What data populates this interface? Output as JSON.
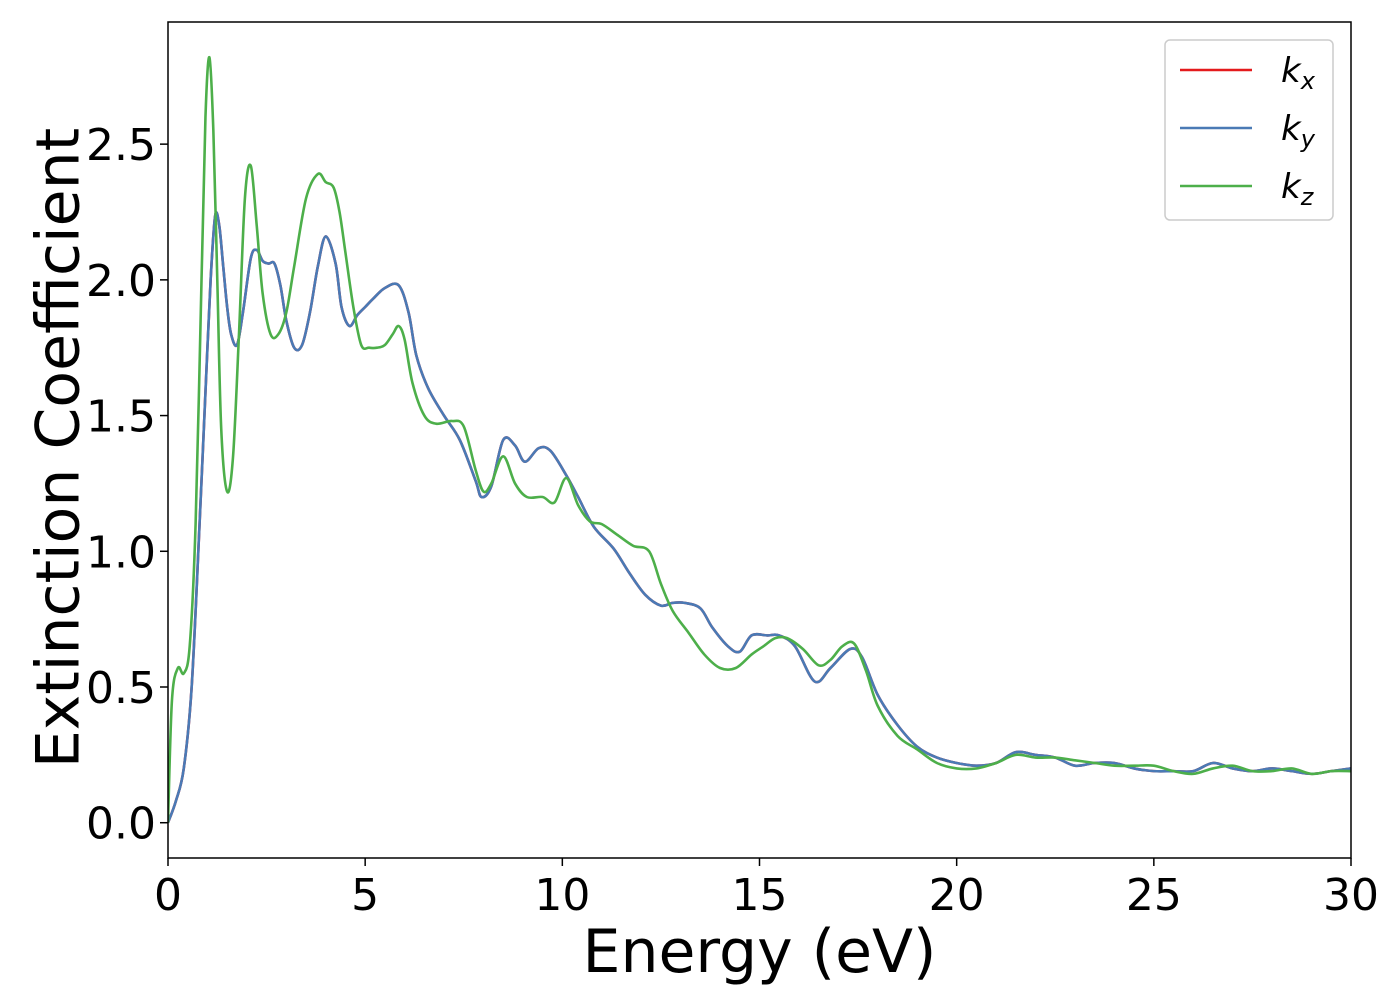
{
  "chart_data": {
    "type": "line",
    "xlabel": "Energy (eV)",
    "ylabel": "Extinction Coefficient",
    "xlim": [
      0,
      30
    ],
    "ylim": [
      -0.13,
      2.95
    ],
    "xticks": [
      0,
      5,
      10,
      15,
      20,
      25,
      30
    ],
    "xtick_labels": [
      "0",
      "5",
      "10",
      "15",
      "20",
      "25",
      "30"
    ],
    "yticks": [
      0.0,
      0.5,
      1.0,
      1.5,
      2.0,
      2.5
    ],
    "ytick_labels": [
      "0.0",
      "0.5",
      "1.0",
      "1.5",
      "2.0",
      "2.5"
    ],
    "grid": false,
    "legend_position": "top-right",
    "series": [
      {
        "name": "k_x",
        "base": "k",
        "sub": "x",
        "color": "#e41a1c",
        "x": [
          0,
          0.2,
          0.4,
          0.6,
          0.8,
          1.0,
          1.1,
          1.2,
          1.3,
          1.4,
          1.5,
          1.6,
          1.75,
          1.9,
          2.1,
          2.25,
          2.4,
          2.55,
          2.7,
          2.85,
          3.0,
          3.2,
          3.4,
          3.6,
          3.8,
          4.0,
          4.25,
          4.4,
          4.6,
          4.8,
          5.0,
          5.2,
          5.5,
          5.85,
          6.1,
          6.3,
          6.6,
          7.0,
          7.4,
          7.8,
          7.95,
          8.2,
          8.5,
          8.8,
          9.05,
          9.4,
          9.7,
          10.1,
          10.4,
          10.8,
          11.3,
          11.7,
          12.1,
          12.5,
          12.8,
          13.1,
          13.5,
          13.8,
          14.2,
          14.5,
          14.8,
          15.2,
          15.5,
          15.9,
          16.4,
          16.8,
          17.3,
          17.6,
          18.0,
          18.5,
          19.0,
          19.5,
          20.0,
          20.5,
          21.0,
          21.5,
          22.0,
          22.5,
          23.0,
          23.5,
          24.0,
          24.5,
          25.0,
          25.5,
          26.0,
          26.5,
          27.0,
          27.5,
          28.0,
          28.5,
          29.0,
          29.5,
          30.0
        ],
        "y": [
          0.0,
          0.08,
          0.2,
          0.5,
          1.1,
          1.75,
          2.05,
          2.24,
          2.2,
          2.05,
          1.9,
          1.8,
          1.76,
          1.88,
          2.08,
          2.11,
          2.07,
          2.06,
          2.06,
          1.98,
          1.85,
          1.75,
          1.76,
          1.88,
          2.05,
          2.16,
          2.06,
          1.9,
          1.83,
          1.87,
          1.9,
          1.93,
          1.97,
          1.98,
          1.88,
          1.72,
          1.6,
          1.5,
          1.41,
          1.26,
          1.2,
          1.24,
          1.41,
          1.39,
          1.33,
          1.38,
          1.37,
          1.28,
          1.2,
          1.09,
          1.01,
          0.92,
          0.84,
          0.8,
          0.81,
          0.81,
          0.79,
          0.72,
          0.65,
          0.63,
          0.69,
          0.69,
          0.69,
          0.65,
          0.52,
          0.57,
          0.64,
          0.61,
          0.47,
          0.36,
          0.28,
          0.24,
          0.22,
          0.21,
          0.22,
          0.26,
          0.25,
          0.24,
          0.21,
          0.22,
          0.22,
          0.2,
          0.19,
          0.19,
          0.19,
          0.22,
          0.2,
          0.19,
          0.2,
          0.19,
          0.18,
          0.19,
          0.2
        ]
      },
      {
        "name": "k_y",
        "base": "k",
        "sub": "y",
        "color": "#4a7ab5",
        "x": [
          0,
          0.2,
          0.4,
          0.6,
          0.8,
          1.0,
          1.1,
          1.2,
          1.3,
          1.4,
          1.5,
          1.6,
          1.75,
          1.9,
          2.1,
          2.25,
          2.4,
          2.55,
          2.7,
          2.85,
          3.0,
          3.2,
          3.4,
          3.6,
          3.8,
          4.0,
          4.25,
          4.4,
          4.6,
          4.8,
          5.0,
          5.2,
          5.5,
          5.85,
          6.1,
          6.3,
          6.6,
          7.0,
          7.4,
          7.8,
          7.95,
          8.2,
          8.5,
          8.8,
          9.05,
          9.4,
          9.7,
          10.1,
          10.4,
          10.8,
          11.3,
          11.7,
          12.1,
          12.5,
          12.8,
          13.1,
          13.5,
          13.8,
          14.2,
          14.5,
          14.8,
          15.2,
          15.5,
          15.9,
          16.4,
          16.8,
          17.3,
          17.6,
          18.0,
          18.5,
          19.0,
          19.5,
          20.0,
          20.5,
          21.0,
          21.5,
          22.0,
          22.5,
          23.0,
          23.5,
          24.0,
          24.5,
          25.0,
          25.5,
          26.0,
          26.5,
          27.0,
          27.5,
          28.0,
          28.5,
          29.0,
          29.5,
          30.0
        ],
        "y": [
          0.0,
          0.08,
          0.2,
          0.5,
          1.1,
          1.75,
          2.05,
          2.24,
          2.2,
          2.05,
          1.9,
          1.8,
          1.76,
          1.88,
          2.08,
          2.11,
          2.07,
          2.06,
          2.06,
          1.98,
          1.85,
          1.75,
          1.76,
          1.88,
          2.05,
          2.16,
          2.06,
          1.9,
          1.83,
          1.87,
          1.9,
          1.93,
          1.97,
          1.98,
          1.88,
          1.72,
          1.6,
          1.5,
          1.41,
          1.26,
          1.2,
          1.24,
          1.41,
          1.39,
          1.33,
          1.38,
          1.37,
          1.28,
          1.2,
          1.09,
          1.01,
          0.92,
          0.84,
          0.8,
          0.81,
          0.81,
          0.79,
          0.72,
          0.65,
          0.63,
          0.69,
          0.69,
          0.69,
          0.65,
          0.52,
          0.57,
          0.64,
          0.61,
          0.47,
          0.36,
          0.28,
          0.24,
          0.22,
          0.21,
          0.22,
          0.26,
          0.25,
          0.24,
          0.21,
          0.22,
          0.22,
          0.2,
          0.19,
          0.19,
          0.19,
          0.22,
          0.2,
          0.19,
          0.2,
          0.19,
          0.18,
          0.19,
          0.2
        ]
      },
      {
        "name": "k_z",
        "base": "k",
        "sub": "z",
        "color": "#4daf4a",
        "x": [
          0,
          0.1,
          0.25,
          0.4,
          0.55,
          0.7,
          0.85,
          0.95,
          1.05,
          1.15,
          1.25,
          1.35,
          1.5,
          1.65,
          1.8,
          1.95,
          2.1,
          2.25,
          2.4,
          2.6,
          2.8,
          3.0,
          3.2,
          3.5,
          3.8,
          4.0,
          4.2,
          4.35,
          4.5,
          4.7,
          4.9,
          5.1,
          5.3,
          5.5,
          5.7,
          5.85,
          6.0,
          6.2,
          6.5,
          6.8,
          7.2,
          7.5,
          7.8,
          8.0,
          8.2,
          8.5,
          8.8,
          9.1,
          9.5,
          9.8,
          10.1,
          10.4,
          10.7,
          11.0,
          11.4,
          11.8,
          12.2,
          12.5,
          12.8,
          13.2,
          13.6,
          14.0,
          14.4,
          14.8,
          15.1,
          15.4,
          15.7,
          16.1,
          16.5,
          16.8,
          17.1,
          17.4,
          17.7,
          18.0,
          18.5,
          19.0,
          19.5,
          20.0,
          20.5,
          21.0,
          21.5,
          22.0,
          22.5,
          23.0,
          23.5,
          24.0,
          24.5,
          25.0,
          25.5,
          26.0,
          26.5,
          27.0,
          27.5,
          28.0,
          28.5,
          29.0,
          29.5,
          30.0
        ],
        "y": [
          0.0,
          0.45,
          0.57,
          0.55,
          0.65,
          1.1,
          2.0,
          2.6,
          2.82,
          2.55,
          2.0,
          1.45,
          1.22,
          1.35,
          1.8,
          2.3,
          2.42,
          2.2,
          1.95,
          1.8,
          1.8,
          1.88,
          2.05,
          2.3,
          2.39,
          2.36,
          2.34,
          2.25,
          2.1,
          1.9,
          1.76,
          1.75,
          1.75,
          1.76,
          1.8,
          1.83,
          1.78,
          1.62,
          1.5,
          1.47,
          1.48,
          1.46,
          1.3,
          1.22,
          1.25,
          1.35,
          1.25,
          1.2,
          1.2,
          1.18,
          1.27,
          1.17,
          1.11,
          1.1,
          1.06,
          1.02,
          1.0,
          0.88,
          0.78,
          0.7,
          0.62,
          0.57,
          0.57,
          0.62,
          0.65,
          0.68,
          0.68,
          0.64,
          0.58,
          0.6,
          0.65,
          0.66,
          0.56,
          0.43,
          0.32,
          0.27,
          0.22,
          0.2,
          0.2,
          0.22,
          0.25,
          0.24,
          0.24,
          0.23,
          0.22,
          0.21,
          0.21,
          0.21,
          0.19,
          0.18,
          0.2,
          0.21,
          0.19,
          0.19,
          0.2,
          0.18,
          0.19,
          0.19
        ]
      }
    ]
  }
}
